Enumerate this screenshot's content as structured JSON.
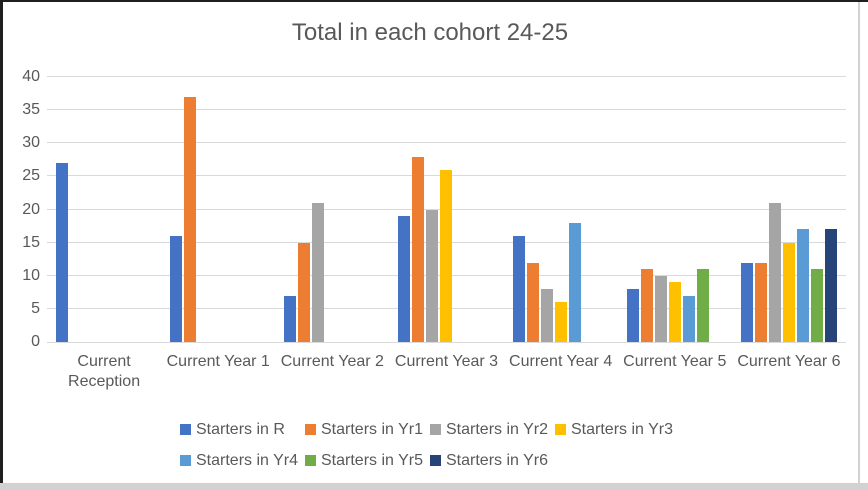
{
  "window": {
    "background": "#FFFFFF",
    "edge_dark_color": "#1F1F1F",
    "edge_light_color": "#D2D2D2"
  },
  "chart_data": {
    "type": "bar",
    "title": "Total in each cohort 24-25",
    "xlabel": "",
    "ylabel": "",
    "categories": [
      "Current Reception",
      "Current Year 1",
      "Current Year 2",
      "Current Year 3",
      "Current Year 4",
      "Current Year 5",
      "Current Year 6"
    ],
    "category_label_lines": [
      [
        "Current",
        "Reception"
      ],
      [
        "Current Year 1"
      ],
      [
        "Current Year 2"
      ],
      [
        "Current Year 3"
      ],
      [
        "Current Year 4"
      ],
      [
        "Current Year 5"
      ],
      [
        "Current Year 6"
      ]
    ],
    "series": [
      {
        "name": "Starters in R",
        "color": "#4472C4",
        "values": [
          27,
          16,
          7,
          19,
          16,
          8,
          12
        ]
      },
      {
        "name": "Starters in Yr1",
        "color": "#ED7D31",
        "values": [
          null,
          37,
          15,
          28,
          12,
          11,
          12
        ]
      },
      {
        "name": "Starters in Yr2",
        "color": "#A5A5A5",
        "values": [
          null,
          null,
          21,
          20,
          8,
          10,
          21
        ]
      },
      {
        "name": "Starters in Yr3",
        "color": "#FFC000",
        "values": [
          null,
          null,
          null,
          26,
          6,
          9,
          15
        ]
      },
      {
        "name": "Starters in Yr4",
        "color": "#5B9BD5",
        "values": [
          null,
          null,
          null,
          null,
          18,
          7,
          17
        ]
      },
      {
        "name": "Starters in Yr5",
        "color": "#70AD47",
        "values": [
          null,
          null,
          null,
          null,
          null,
          11,
          11
        ]
      },
      {
        "name": "Starters in Yr6",
        "color": "#264478",
        "values": [
          null,
          null,
          null,
          null,
          null,
          null,
          17
        ]
      }
    ],
    "ylim": [
      0,
      40
    ],
    "ytick_step": 5,
    "grid": true,
    "gridline_color": "#D9D9D9",
    "text_color": "#595959",
    "legend_position": "bottom"
  }
}
